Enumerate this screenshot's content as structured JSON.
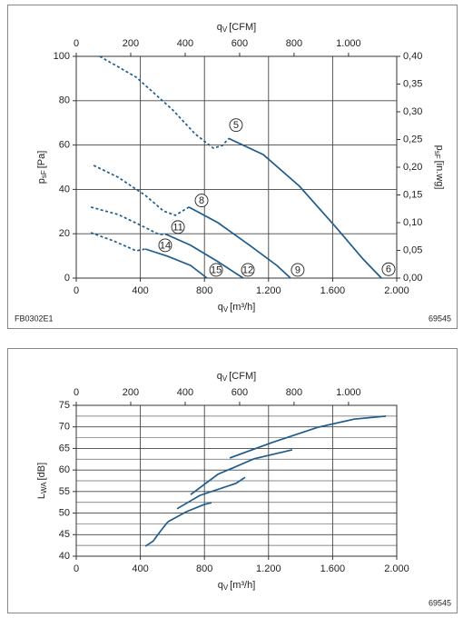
{
  "chart_data": [
    {
      "type": "line",
      "x_label": {
        "symbol": "q",
        "subscript": "V",
        "unit": "[m³/h]"
      },
      "x2_label": {
        "symbol": "q",
        "subscript": "V",
        "unit": "[CFM]"
      },
      "y_label": {
        "symbol": "p",
        "subscript": "sF",
        "unit": "[Pa]"
      },
      "y2_label": {
        "symbol": "p",
        "subscript": "sF",
        "unit": "[in.wg]"
      },
      "xlim": [
        0,
        2000
      ],
      "xticks": [
        0,
        400,
        800,
        {
          "value": 1200,
          "label": "1.200"
        },
        {
          "value": 1600,
          "label": "1.600"
        },
        {
          "value": 2000,
          "label": "2.000"
        }
      ],
      "x2lim": [
        0,
        1177
      ],
      "x2ticks": [
        0,
        200,
        400,
        600,
        800,
        {
          "value": 1000,
          "label": "1.000"
        }
      ],
      "ylim": [
        0,
        100
      ],
      "yticks": [
        0,
        20,
        40,
        60,
        80,
        100
      ],
      "y2lim": [
        0,
        0.4
      ],
      "y2ticks": [
        {
          "value": 0,
          "label": "0,00"
        },
        {
          "value": 0.05,
          "label": "0,05"
        },
        {
          "value": 0.1,
          "label": "0,10"
        },
        {
          "value": 0.15,
          "label": "0,15"
        },
        {
          "value": 0.2,
          "label": "0,20"
        },
        {
          "value": 0.25,
          "label": "0,25"
        },
        {
          "value": 0.3,
          "label": "0,30"
        },
        {
          "value": 0.35,
          "label": "0,35"
        },
        {
          "value": 0.4,
          "label": "0,40"
        }
      ],
      "grid": true,
      "minor_grid": false,
      "color": "#1f5c8c",
      "series": [
        {
          "style": "dashed",
          "x": [
            147,
            374,
            600,
            742,
            855,
            912,
            951
          ],
          "values": [
            100,
            90.6,
            76,
            65,
            58.6,
            59.8,
            63
          ]
        },
        {
          "style": "solid",
          "x": [
            951,
            1167,
            1394,
            1620,
            1790,
            1904
          ],
          "values": [
            63,
            55.7,
            41.4,
            23,
            8.6,
            0
          ]
        },
        {
          "style": "dashed",
          "x": [
            108,
            261,
            431,
            544,
            618,
            703
          ],
          "values": [
            50.8,
            45.5,
            37.3,
            30.3,
            28.3,
            32
          ]
        },
        {
          "style": "solid",
          "x": [
            703,
            884,
            1082,
            1252,
            1337
          ],
          "values": [
            32,
            25,
            14.8,
            5.7,
            0
          ]
        },
        {
          "style": "dashed",
          "x": [
            91,
            261,
            402,
            516,
            561
          ],
          "values": [
            32,
            28.7,
            23.8,
            19.7,
            19.7
          ]
        },
        {
          "style": "solid",
          "x": [
            561,
            714,
            884,
            1042
          ],
          "values": [
            19.7,
            14.8,
            7.4,
            0
          ]
        },
        {
          "style": "dashed",
          "x": [
            91,
            232,
            374,
            431
          ],
          "values": [
            20.5,
            16.8,
            12.3,
            13.1
          ]
        },
        {
          "style": "solid",
          "x": [
            431,
            572,
            714,
            816
          ],
          "values": [
            13.1,
            9.8,
            5.7,
            0
          ]
        }
      ],
      "annotations": [
        {
          "text": "5",
          "x": 997,
          "y": 69
        },
        {
          "text": "6",
          "x": 1949,
          "y": 4
        },
        {
          "text": "8",
          "x": 782,
          "y": 35
        },
        {
          "text": "9",
          "x": 1382,
          "y": 3.7
        },
        {
          "text": "11",
          "x": 635,
          "y": 23
        },
        {
          "text": "12",
          "x": 1071,
          "y": 3.7
        },
        {
          "text": "14",
          "x": 555,
          "y": 14.8
        },
        {
          "text": "15",
          "x": 873,
          "y": 3.7
        }
      ],
      "code_left": "FB0302E1",
      "code_right": "69545"
    },
    {
      "type": "line",
      "x_label": {
        "symbol": "q",
        "subscript": "V",
        "unit": "[m³/h]"
      },
      "x2_label": {
        "symbol": "q",
        "subscript": "V",
        "unit": "[CFM]"
      },
      "y_label": {
        "symbol": "L",
        "subscript": "WA",
        "unit": "[dB]"
      },
      "xlim": [
        0,
        2000
      ],
      "xticks": [
        0,
        400,
        800,
        {
          "value": 1200,
          "label": "1.200"
        },
        {
          "value": 1600,
          "label": "1.600"
        },
        {
          "value": 2000,
          "label": "2.000"
        }
      ],
      "x2lim": [
        0,
        1177
      ],
      "x2ticks": [
        0,
        200,
        400,
        600,
        800,
        {
          "value": 1000,
          "label": "1.000"
        }
      ],
      "ylim": [
        40,
        75
      ],
      "yticks": [
        40,
        45,
        50,
        55,
        60,
        65,
        70,
        75
      ],
      "grid": true,
      "minor_grid": true,
      "color": "#1f5c8c",
      "series": [
        {
          "style": "solid",
          "x": [
            958,
            1224,
            1507,
            1734,
            1932
          ],
          "values": [
            62.8,
            66.4,
            69.9,
            71.8,
            72.5
          ]
        },
        {
          "style": "solid",
          "x": [
            714,
            884,
            1110,
            1348
          ],
          "values": [
            54.3,
            59,
            62.6,
            64.7
          ]
        },
        {
          "style": "solid",
          "x": [
            629,
            771,
            997,
            1054
          ],
          "values": [
            51,
            54.1,
            56.9,
            58.3
          ]
        },
        {
          "style": "solid",
          "x": [
            572,
            686,
            799,
            844
          ],
          "values": [
            48,
            50.3,
            52,
            52.4
          ]
        },
        {
          "style": "solid",
          "x": [
            431,
            480,
            530,
            572
          ],
          "values": [
            42.3,
            43.5,
            46,
            48
          ]
        }
      ],
      "code_right": "69545"
    }
  ]
}
